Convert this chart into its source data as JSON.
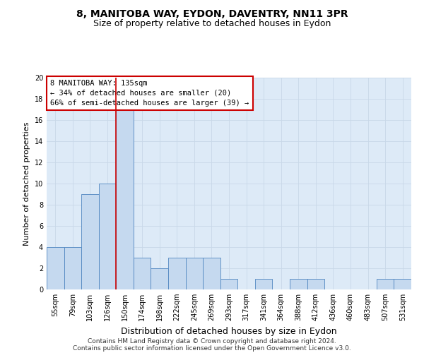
{
  "title1": "8, MANITOBA WAY, EYDON, DAVENTRY, NN11 3PR",
  "title2": "Size of property relative to detached houses in Eydon",
  "xlabel": "Distribution of detached houses by size in Eydon",
  "ylabel": "Number of detached properties",
  "categories": [
    "55sqm",
    "79sqm",
    "103sqm",
    "126sqm",
    "150sqm",
    "174sqm",
    "198sqm",
    "222sqm",
    "245sqm",
    "269sqm",
    "293sqm",
    "317sqm",
    "341sqm",
    "364sqm",
    "388sqm",
    "412sqm",
    "436sqm",
    "460sqm",
    "483sqm",
    "507sqm",
    "531sqm"
  ],
  "values": [
    4,
    4,
    9,
    10,
    17,
    3,
    2,
    3,
    3,
    3,
    1,
    0,
    1,
    0,
    1,
    1,
    0,
    0,
    0,
    1,
    1
  ],
  "bar_color": "#c5d9ef",
  "bar_edge_color": "#4f86c0",
  "grid_color": "#c8d8e8",
  "bg_color": "#ddeaf7",
  "red_line_x": 3.5,
  "annotation_text": "8 MANITOBA WAY: 135sqm\n← 34% of detached houses are smaller (20)\n66% of semi-detached houses are larger (39) →",
  "annotation_box_color": "#ffffff",
  "annotation_box_edge": "#cc0000",
  "footer1": "Contains HM Land Registry data © Crown copyright and database right 2024.",
  "footer2": "Contains public sector information licensed under the Open Government Licence v3.0.",
  "ylim": [
    0,
    20
  ],
  "yticks": [
    0,
    2,
    4,
    6,
    8,
    10,
    12,
    14,
    16,
    18,
    20
  ],
  "title1_fontsize": 10,
  "title2_fontsize": 9,
  "xlabel_fontsize": 9,
  "ylabel_fontsize": 8,
  "tick_fontsize": 7,
  "footer_fontsize": 6.5,
  "annot_fontsize": 7.5
}
